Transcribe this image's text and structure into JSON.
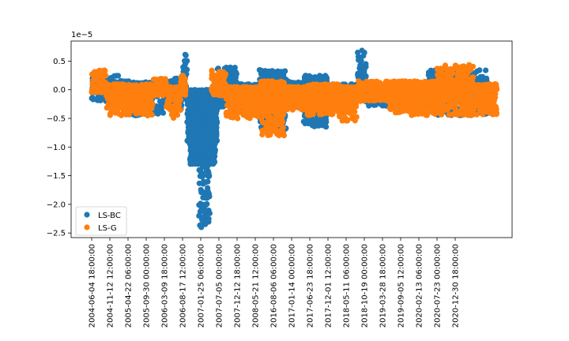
{
  "chart_data": {
    "type": "scatter",
    "title": "",
    "xlabel": "",
    "ylabel": "",
    "y_scale_label": "1e−5",
    "ylim": [
      -2.58,
      0.85
    ],
    "y_ticks": [
      0.5,
      0.0,
      -0.5,
      -1.0,
      -1.5,
      -2.0,
      -2.5
    ],
    "y_tick_labels": [
      "0.5",
      "0.0",
      "−0.5",
      "−1.0",
      "−1.5",
      "−2.0",
      "−2.5"
    ],
    "x_tick_labels": [
      "2004-06-04 18:00:00",
      "2004-11-12 12:00:00",
      "2005-04-22 06:00:00",
      "2005-09-30 00:00:00",
      "2006-03-09 18:00:00",
      "2006-08-17 12:00:00",
      "2007-01-25 06:00:00",
      "2007-07-05 00:00:00",
      "2007-12-12 18:00:00",
      "2008-05-21 12:00:00",
      "2016-08-06 06:00:00",
      "2017-01-14 00:00:00",
      "2017-06-23 18:00:00",
      "2017-12-01 12:00:00",
      "2018-05-11 06:00:00",
      "2018-10-19 00:00:00",
      "2019-03-28 18:00:00",
      "2019-09-05 12:00:00",
      "2020-02-13 06:00:00",
      "2020-07-23 00:00:00",
      "2020-12-30 18:00:00"
    ],
    "grid": false,
    "legend_position": "lower-left",
    "series": [
      {
        "name": "LS-BC",
        "color": "#1f77b4",
        "segments": [
          {
            "x0": 0.0,
            "x1": 1.6,
            "lo": -0.2,
            "hi": 0.25,
            "n": 120
          },
          {
            "x0": 1.6,
            "x1": 4.0,
            "lo": -0.45,
            "hi": 0.15,
            "n": 260
          },
          {
            "x0": 4.0,
            "x1": 5.0,
            "lo": -0.35,
            "hi": 0.2,
            "n": 120
          },
          {
            "x0": 5.0,
            "x1": 5.25,
            "lo": -0.15,
            "hi": 0.65,
            "n": 60
          },
          {
            "x0": 5.25,
            "x1": 6.9,
            "lo": -0.9,
            "hi": 0.0,
            "n": 700
          },
          {
            "x0": 5.4,
            "x1": 6.8,
            "lo": -1.3,
            "hi": -0.3,
            "n": 320
          },
          {
            "x0": 5.9,
            "x1": 6.5,
            "lo": -2.4,
            "hi": -1.0,
            "n": 90
          },
          {
            "x0": 6.9,
            "x1": 8.0,
            "lo": -0.3,
            "hi": 0.4,
            "n": 180
          },
          {
            "x0": 8.0,
            "x1": 9.2,
            "lo": -0.35,
            "hi": 0.1,
            "n": 200
          },
          {
            "x0": 9.2,
            "x1": 10.7,
            "lo": -0.7,
            "hi": 0.35,
            "n": 360
          },
          {
            "x0": 10.7,
            "x1": 11.6,
            "lo": -0.3,
            "hi": 0.15,
            "n": 160
          },
          {
            "x0": 11.6,
            "x1": 13.0,
            "lo": -0.65,
            "hi": 0.25,
            "n": 360
          },
          {
            "x0": 13.0,
            "x1": 14.6,
            "lo": -0.25,
            "hi": 0.1,
            "n": 220
          },
          {
            "x0": 14.6,
            "x1": 15.1,
            "lo": -0.1,
            "hi": 0.7,
            "n": 90
          },
          {
            "x0": 15.1,
            "x1": 18.5,
            "lo": -0.3,
            "hi": 0.1,
            "n": 420
          },
          {
            "x0": 18.5,
            "x1": 21.8,
            "lo": -0.45,
            "hi": 0.35,
            "n": 380
          }
        ]
      },
      {
        "name": "LS-G",
        "color": "#ff7f0e",
        "segments": [
          {
            "x0": 0.0,
            "x1": 0.8,
            "lo": -0.05,
            "hi": 0.35,
            "n": 110
          },
          {
            "x0": 0.8,
            "x1": 3.4,
            "lo": -0.45,
            "hi": 0.1,
            "n": 380
          },
          {
            "x0": 3.4,
            "x1": 4.1,
            "lo": -0.1,
            "hi": 0.2,
            "n": 100
          },
          {
            "x0": 4.1,
            "x1": 4.9,
            "lo": -0.5,
            "hi": 0.05,
            "n": 130
          },
          {
            "x0": 4.9,
            "x1": 5.2,
            "lo": -0.1,
            "hi": 0.25,
            "n": 50
          },
          {
            "x0": 6.6,
            "x1": 7.4,
            "lo": -0.1,
            "hi": 0.35,
            "n": 120
          },
          {
            "x0": 7.4,
            "x1": 9.3,
            "lo": -0.5,
            "hi": 0.05,
            "n": 420
          },
          {
            "x0": 9.3,
            "x1": 10.6,
            "lo": -0.8,
            "hi": 0.15,
            "n": 420
          },
          {
            "x0": 10.6,
            "x1": 11.8,
            "lo": -0.35,
            "hi": 0.05,
            "n": 220
          },
          {
            "x0": 11.8,
            "x1": 13.6,
            "lo": -0.45,
            "hi": 0.1,
            "n": 420
          },
          {
            "x0": 13.6,
            "x1": 14.6,
            "lo": -0.55,
            "hi": 0.05,
            "n": 200
          },
          {
            "x0": 14.6,
            "x1": 16.4,
            "lo": -0.2,
            "hi": 0.15,
            "n": 260
          },
          {
            "x0": 16.4,
            "x1": 17.6,
            "lo": -0.4,
            "hi": 0.15,
            "n": 260
          },
          {
            "x0": 17.6,
            "x1": 19.0,
            "lo": -0.45,
            "hi": 0.15,
            "n": 300
          },
          {
            "x0": 19.0,
            "x1": 21.0,
            "lo": -0.45,
            "hi": 0.45,
            "n": 360
          },
          {
            "x0": 21.0,
            "x1": 22.3,
            "lo": -0.45,
            "hi": 0.1,
            "n": 220
          }
        ]
      }
    ]
  }
}
